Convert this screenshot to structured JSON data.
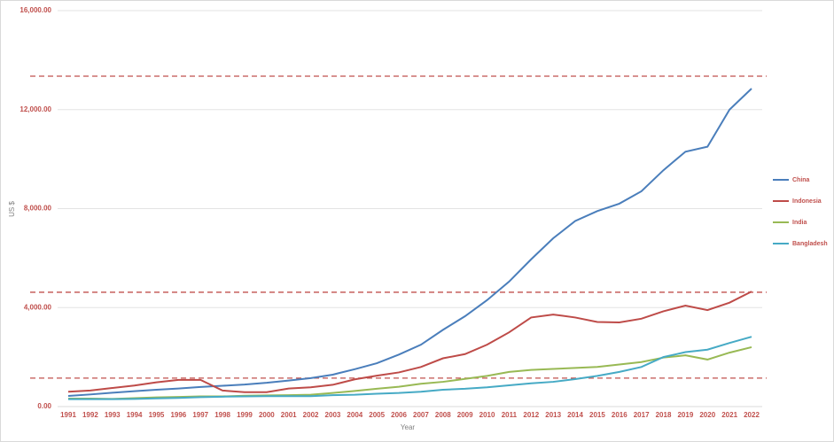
{
  "chart_data": {
    "type": "line",
    "x_label": "Year",
    "y_label": "US $",
    "categories": [
      "1991",
      "1992",
      "1993",
      "1994",
      "1995",
      "1996",
      "1997",
      "1998",
      "1999",
      "2000",
      "2001",
      "2002",
      "2003",
      "2004",
      "2005",
      "2006",
      "2007",
      "2008",
      "2009",
      "2010",
      "2011",
      "2012",
      "2013",
      "2014",
      "2015",
      "2016",
      "2017",
      "2018",
      "2019",
      "2020",
      "2021",
      "2022"
    ],
    "series": [
      {
        "name": "China",
        "color": "#4a7ebb",
        "values": [
          430,
          490,
          560,
          620,
          680,
          730,
          790,
          840,
          890,
          960,
          1050,
          1150,
          1290,
          1510,
          1750,
          2100,
          2500,
          3100,
          3650,
          4300,
          5050,
          5950,
          6800,
          7500,
          7900,
          8200,
          8700,
          9550,
          10300,
          10500,
          12000,
          12850
        ]
      },
      {
        "name": "Indonesia",
        "color": "#be4b48",
        "values": [
          600,
          650,
          750,
          850,
          980,
          1080,
          1080,
          650,
          580,
          580,
          730,
          780,
          880,
          1100,
          1250,
          1380,
          1600,
          1950,
          2120,
          2500,
          3000,
          3600,
          3720,
          3600,
          3420,
          3400,
          3550,
          3850,
          4080,
          3900,
          4200,
          4650
        ]
      },
      {
        "name": "India",
        "color": "#98b954",
        "values": [
          320,
          320,
          310,
          340,
          370,
          390,
          410,
          410,
          440,
          450,
          460,
          480,
          550,
          630,
          720,
          800,
          920,
          1000,
          1120,
          1240,
          1400,
          1480,
          1520,
          1560,
          1600,
          1700,
          1800,
          1980,
          2070,
          1900,
          2180,
          2400
        ]
      },
      {
        "name": "Bangladesh",
        "color": "#46aac5",
        "values": [
          300,
          300,
          300,
          310,
          330,
          350,
          380,
          400,
          410,
          420,
          420,
          420,
          460,
          480,
          520,
          550,
          600,
          680,
          720,
          780,
          860,
          940,
          1000,
          1110,
          1240,
          1400,
          1600,
          2000,
          2200,
          2300,
          2570,
          2820
        ]
      }
    ],
    "ylim": [
      0,
      16000
    ],
    "yticks": [
      {
        "value": 0,
        "label": "0.00"
      },
      {
        "value": 4000,
        "label": "4,000.00"
      },
      {
        "value": 8000,
        "label": "8,000.00"
      },
      {
        "value": 12000,
        "label": "12,000.00"
      },
      {
        "value": 16000,
        "label": "16,000.00"
      }
    ],
    "grid": true,
    "legend": "right",
    "reference_lines": [
      13350,
      4620,
      1150
    ],
    "reference_color": "#c0504d"
  }
}
